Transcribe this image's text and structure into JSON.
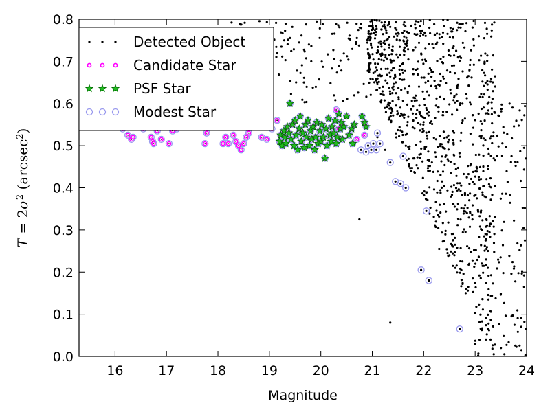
{
  "chart_data": {
    "type": "scatter",
    "xlabel": "Magnitude",
    "ylabel_html": "T = 2σ² (arcsec²)",
    "xlim": [
      15.3,
      24.0
    ],
    "ylim": [
      0.0,
      0.8
    ],
    "x_ticks": [
      "16",
      "17",
      "18",
      "19",
      "20",
      "21",
      "22",
      "23",
      "24"
    ],
    "y_ticks": [
      "0.0",
      "0.1",
      "0.2",
      "0.3",
      "0.4",
      "0.5",
      "0.6",
      "0.7",
      "0.8"
    ],
    "legend": {
      "placement": "top-left",
      "entries": [
        "Detected Object",
        "Candidate Star",
        "PSF Star",
        "Modest Star"
      ]
    },
    "colors": {
      "detected": "#000000",
      "candidate": "#ff00ff",
      "psf_fill": "#22bb22",
      "psf_edge": "#006600",
      "modest": "#9999ee"
    },
    "series": [
      {
        "name": "Candidate Star",
        "points": [
          [
            15.62,
            0.545
          ],
          [
            15.75,
            0.555
          ],
          [
            16.15,
            0.54
          ],
          [
            16.25,
            0.525
          ],
          [
            16.32,
            0.515
          ],
          [
            16.35,
            0.52
          ],
          [
            16.55,
            0.54
          ],
          [
            16.7,
            0.52
          ],
          [
            16.73,
            0.51
          ],
          [
            16.75,
            0.505
          ],
          [
            16.82,
            0.535
          ],
          [
            16.9,
            0.515
          ],
          [
            17.05,
            0.505
          ],
          [
            17.12,
            0.535
          ],
          [
            17.2,
            0.54
          ],
          [
            17.45,
            0.56
          ],
          [
            17.75,
            0.505
          ],
          [
            17.78,
            0.53
          ],
          [
            17.85,
            0.545
          ],
          [
            18.1,
            0.505
          ],
          [
            18.15,
            0.52
          ],
          [
            18.2,
            0.505
          ],
          [
            18.3,
            0.525
          ],
          [
            18.35,
            0.51
          ],
          [
            18.4,
            0.5
          ],
          [
            18.45,
            0.49
          ],
          [
            18.5,
            0.505
          ],
          [
            18.55,
            0.52
          ],
          [
            18.6,
            0.53
          ],
          [
            18.7,
            0.55
          ],
          [
            18.85,
            0.52
          ],
          [
            18.95,
            0.515
          ],
          [
            19.05,
            0.54
          ],
          [
            19.15,
            0.56
          ],
          [
            20.3,
            0.585
          ],
          [
            20.35,
            0.54
          ],
          [
            20.7,
            0.515
          ],
          [
            20.85,
            0.525
          ]
        ]
      },
      {
        "name": "PSF Star",
        "points": [
          [
            19.2,
            0.51
          ],
          [
            19.22,
            0.525
          ],
          [
            19.25,
            0.5
          ],
          [
            19.28,
            0.535
          ],
          [
            19.3,
            0.52
          ],
          [
            19.32,
            0.505
          ],
          [
            19.35,
            0.545
          ],
          [
            19.38,
            0.53
          ],
          [
            19.4,
            0.6
          ],
          [
            19.42,
            0.515
          ],
          [
            19.45,
            0.55
          ],
          [
            19.48,
            0.5
          ],
          [
            19.5,
            0.56
          ],
          [
            19.52,
            0.525
          ],
          [
            19.55,
            0.49
          ],
          [
            19.58,
            0.54
          ],
          [
            19.6,
            0.57
          ],
          [
            19.62,
            0.51
          ],
          [
            19.65,
            0.53
          ],
          [
            19.68,
            0.495
          ],
          [
            19.7,
            0.55
          ],
          [
            19.72,
            0.52
          ],
          [
            19.75,
            0.56
          ],
          [
            19.78,
            0.5
          ],
          [
            19.8,
            0.535
          ],
          [
            19.82,
            0.515
          ],
          [
            19.85,
            0.545
          ],
          [
            19.88,
            0.49
          ],
          [
            19.9,
            0.52
          ],
          [
            19.92,
            0.555
          ],
          [
            19.95,
            0.505
          ],
          [
            19.98,
            0.535
          ],
          [
            20.0,
            0.51
          ],
          [
            20.02,
            0.55
          ],
          [
            20.05,
            0.52
          ],
          [
            20.08,
            0.47
          ],
          [
            20.1,
            0.54
          ],
          [
            20.12,
            0.5
          ],
          [
            20.15,
            0.565
          ],
          [
            20.18,
            0.525
          ],
          [
            20.2,
            0.51
          ],
          [
            20.22,
            0.545
          ],
          [
            20.25,
            0.53
          ],
          [
            20.28,
            0.56
          ],
          [
            20.3,
            0.505
          ],
          [
            20.32,
            0.52
          ],
          [
            20.35,
            0.575
          ],
          [
            20.38,
            0.54
          ],
          [
            20.4,
            0.555
          ],
          [
            20.42,
            0.515
          ],
          [
            20.45,
            0.545
          ],
          [
            20.5,
            0.57
          ],
          [
            20.55,
            0.525
          ],
          [
            20.6,
            0.54
          ],
          [
            20.62,
            0.505
          ],
          [
            20.65,
            0.55
          ],
          [
            20.8,
            0.57
          ],
          [
            20.85,
            0.555
          ],
          [
            20.88,
            0.545
          ]
        ]
      },
      {
        "name": "Modest Star",
        "points": [
          [
            20.78,
            0.49
          ],
          [
            20.88,
            0.485
          ],
          [
            20.92,
            0.5
          ],
          [
            20.98,
            0.49
          ],
          [
            21.02,
            0.505
          ],
          [
            21.08,
            0.49
          ],
          [
            21.1,
            0.53
          ],
          [
            21.15,
            0.505
          ],
          [
            21.35,
            0.46
          ],
          [
            21.45,
            0.415
          ],
          [
            21.55,
            0.41
          ],
          [
            21.65,
            0.4
          ],
          [
            21.6,
            0.475
          ],
          [
            22.05,
            0.345
          ],
          [
            21.95,
            0.205
          ],
          [
            22.1,
            0.18
          ],
          [
            22.7,
            0.065
          ]
        ]
      }
    ]
  }
}
